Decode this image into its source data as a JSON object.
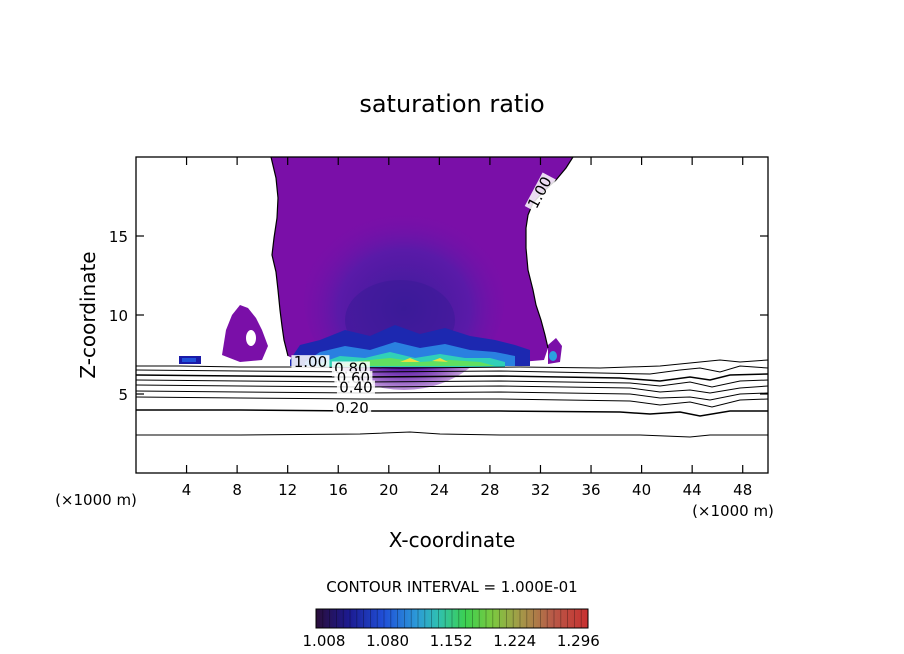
{
  "chart_data": {
    "type": "contour",
    "title": "saturation ratio",
    "xlabel": "X-coordinate",
    "ylabel": "Z-coordinate",
    "x_unit": "(×1000 m)",
    "x_unit_right": "(×1000 m)",
    "xlim": [
      0,
      50
    ],
    "ylim": [
      0,
      20
    ],
    "x_ticks": [
      4,
      8,
      12,
      16,
      20,
      24,
      28,
      32,
      36,
      40,
      44,
      48
    ],
    "y_ticks": [
      5,
      10,
      15
    ],
    "contour_interval_text": "CONTOUR INTERVAL = 1.000E-01",
    "contour_levels": [
      0.1,
      0.2,
      0.3,
      0.4,
      0.5,
      0.6,
      0.7,
      0.8,
      0.9,
      1.0
    ],
    "contour_labels": [
      {
        "text": "1.00",
        "x": 32.3,
        "y": 17.6,
        "angle": -62
      },
      {
        "text": "1.00",
        "x": 13.8,
        "y": 6.7
      },
      {
        "text": "0.80",
        "x": 17.0,
        "y": 6.3
      },
      {
        "text": "0.60",
        "x": 17.2,
        "y": 5.7
      },
      {
        "text": "0.40",
        "x": 17.4,
        "y": 5.1
      },
      {
        "text": "0.20",
        "x": 17.1,
        "y": 3.8
      }
    ],
    "colorbar": {
      "colors": [
        "#2a0e3a",
        "#1a1a8c",
        "#2040d0",
        "#2890e0",
        "#30c8c0",
        "#40d060",
        "#80d040",
        "#b0a040",
        "#c06040",
        "#c03030"
      ],
      "tick_labels": [
        "1.008",
        "1.080",
        "1.152",
        "1.224",
        "1.296"
      ],
      "tick_values": [
        1.008,
        1.08,
        1.152,
        1.224,
        1.296
      ]
    },
    "fill_color": "#7a0fa8",
    "core_color": "#4a1a9c"
  }
}
